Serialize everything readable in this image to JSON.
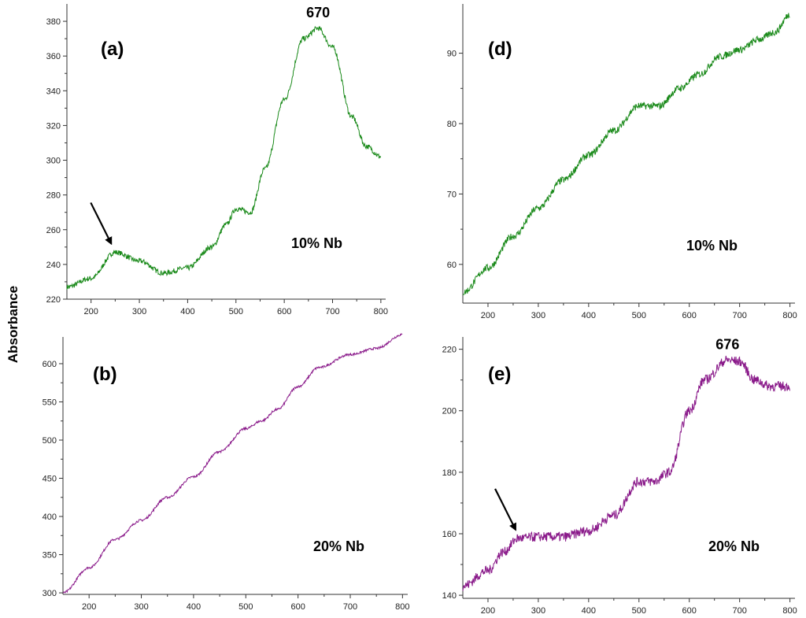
{
  "figure": {
    "ylabel": "Absorbance"
  },
  "chart_data": [
    {
      "id": "a",
      "type": "line",
      "panel_label": "(a)",
      "annotation": "10% Nb",
      "xlabel": "",
      "ylabel": "Absorbance",
      "xlim": [
        150,
        810
      ],
      "ylim": [
        220,
        390
      ],
      "xticks": [
        200,
        300,
        400,
        500,
        600,
        700,
        800
      ],
      "yticks": [
        220,
        240,
        260,
        280,
        300,
        320,
        340,
        360,
        380
      ],
      "color": "#1a8a1a",
      "x": [
        150,
        200,
        250,
        300,
        350,
        400,
        450,
        480,
        500,
        530,
        560,
        600,
        640,
        670,
        700,
        740,
        770,
        800
      ],
      "y": [
        227,
        232,
        247,
        242,
        235,
        238,
        250,
        263,
        272,
        270,
        295,
        335,
        370,
        376,
        365,
        325,
        308,
        302
      ],
      "noise": 1.5,
      "peak": {
        "x": 670,
        "y": 376,
        "label": "670"
      },
      "arrow_at": {
        "x": 245,
        "y": 247
      }
    },
    {
      "id": "b",
      "type": "line",
      "panel_label": "(b)",
      "annotation": "20% Nb",
      "xlabel": "",
      "ylabel": "Absorbance",
      "xlim": [
        150,
        810
      ],
      "ylim": [
        298,
        635
      ],
      "xticks": [
        200,
        300,
        400,
        500,
        600,
        700,
        800
      ],
      "yticks": [
        300,
        350,
        400,
        450,
        500,
        550,
        600
      ],
      "color": "#8a1a8a",
      "x": [
        150,
        200,
        250,
        300,
        350,
        400,
        450,
        500,
        530,
        560,
        600,
        640,
        700,
        750,
        800
      ],
      "y": [
        300,
        333,
        370,
        395,
        425,
        452,
        485,
        515,
        525,
        540,
        570,
        595,
        612,
        620,
        638
      ],
      "noise": 1.5
    },
    {
      "id": "d",
      "type": "line",
      "panel_label": "(d)",
      "annotation": "10% Nb",
      "xlabel": "",
      "ylabel": "",
      "xlim": [
        150,
        810
      ],
      "ylim": [
        54.5,
        97
      ],
      "xticks": [
        200,
        300,
        400,
        500,
        600,
        700,
        800
      ],
      "yticks": [
        60,
        70,
        80,
        90
      ],
      "color": "#1a8a1a",
      "x": [
        150,
        200,
        250,
        300,
        350,
        400,
        450,
        500,
        510,
        540,
        580,
        620,
        660,
        700,
        740,
        770,
        800
      ],
      "y": [
        56,
        59.5,
        64,
        68,
        72,
        75.5,
        79,
        82.5,
        82.5,
        82.5,
        85,
        87,
        89.5,
        90.5,
        92,
        93,
        95.5
      ],
      "noise": 0.5
    },
    {
      "id": "e",
      "type": "line",
      "panel_label": "(e)",
      "annotation": "20% Nb",
      "xlabel": "",
      "ylabel": "",
      "xlim": [
        150,
        810
      ],
      "ylim": [
        139,
        224
      ],
      "xticks": [
        200,
        300,
        400,
        500,
        600,
        700,
        800
      ],
      "yticks": [
        140,
        160,
        180,
        200,
        220
      ],
      "color": "#8a1a8a",
      "x": [
        150,
        200,
        230,
        260,
        300,
        350,
        400,
        450,
        500,
        530,
        560,
        600,
        630,
        676,
        700,
        730,
        760,
        800
      ],
      "y": [
        143,
        148,
        154,
        158.5,
        159,
        159,
        161,
        166,
        177,
        177,
        180,
        200,
        210,
        216.5,
        216,
        210,
        208,
        208
      ],
      "noise": 1.6,
      "peak": {
        "x": 676,
        "y": 216.5,
        "label": "676"
      },
      "arrow_at": {
        "x": 258,
        "y": 158.5
      }
    }
  ]
}
